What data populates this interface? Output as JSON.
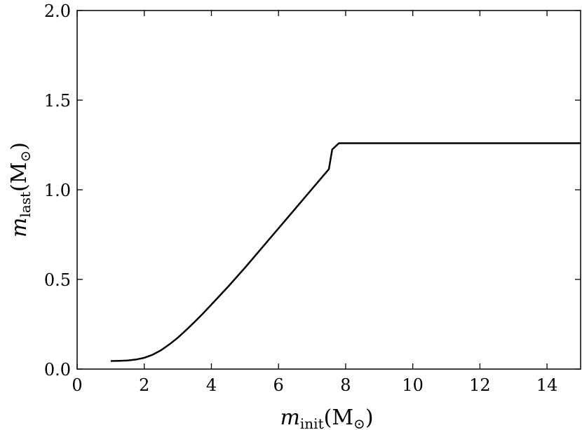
{
  "chart_data": {
    "type": "line",
    "xlim": [
      0,
      15
    ],
    "ylim": [
      0.0,
      2.0
    ],
    "x_ticks": [
      "0",
      "2",
      "4",
      "6",
      "8",
      "10",
      "12",
      "14"
    ],
    "y_ticks": [
      "0.0",
      "0.5",
      "1.0",
      "1.5",
      "2.0"
    ],
    "xlabel": {
      "main": "m",
      "sub": "init",
      "rest": "(M",
      "sun": "⊙",
      "close": ")"
    },
    "ylabel": {
      "main": "m",
      "sub": "last",
      "rest": "(M",
      "sun": "⊙",
      "close": ")"
    },
    "grid": false,
    "series": [
      {
        "color": "#000000",
        "x": [
          1.0,
          1.25,
          1.5,
          1.75,
          2.0,
          2.25,
          2.5,
          2.75,
          3.0,
          3.25,
          3.5,
          3.75,
          4.0,
          4.5,
          5.0,
          5.5,
          6.0,
          6.5,
          7.0,
          7.5,
          7.6,
          7.8,
          8.0,
          9.0,
          10.0,
          11.0,
          12.0,
          13.0,
          14.0,
          15.0
        ],
        "y": [
          0.045,
          0.046,
          0.048,
          0.053,
          0.063,
          0.08,
          0.105,
          0.138,
          0.175,
          0.218,
          0.263,
          0.31,
          0.36,
          0.46,
          0.565,
          0.675,
          0.785,
          0.895,
          1.005,
          1.115,
          1.225,
          1.26,
          1.26,
          1.26,
          1.26,
          1.26,
          1.26,
          1.26,
          1.26,
          1.26
        ]
      }
    ]
  }
}
